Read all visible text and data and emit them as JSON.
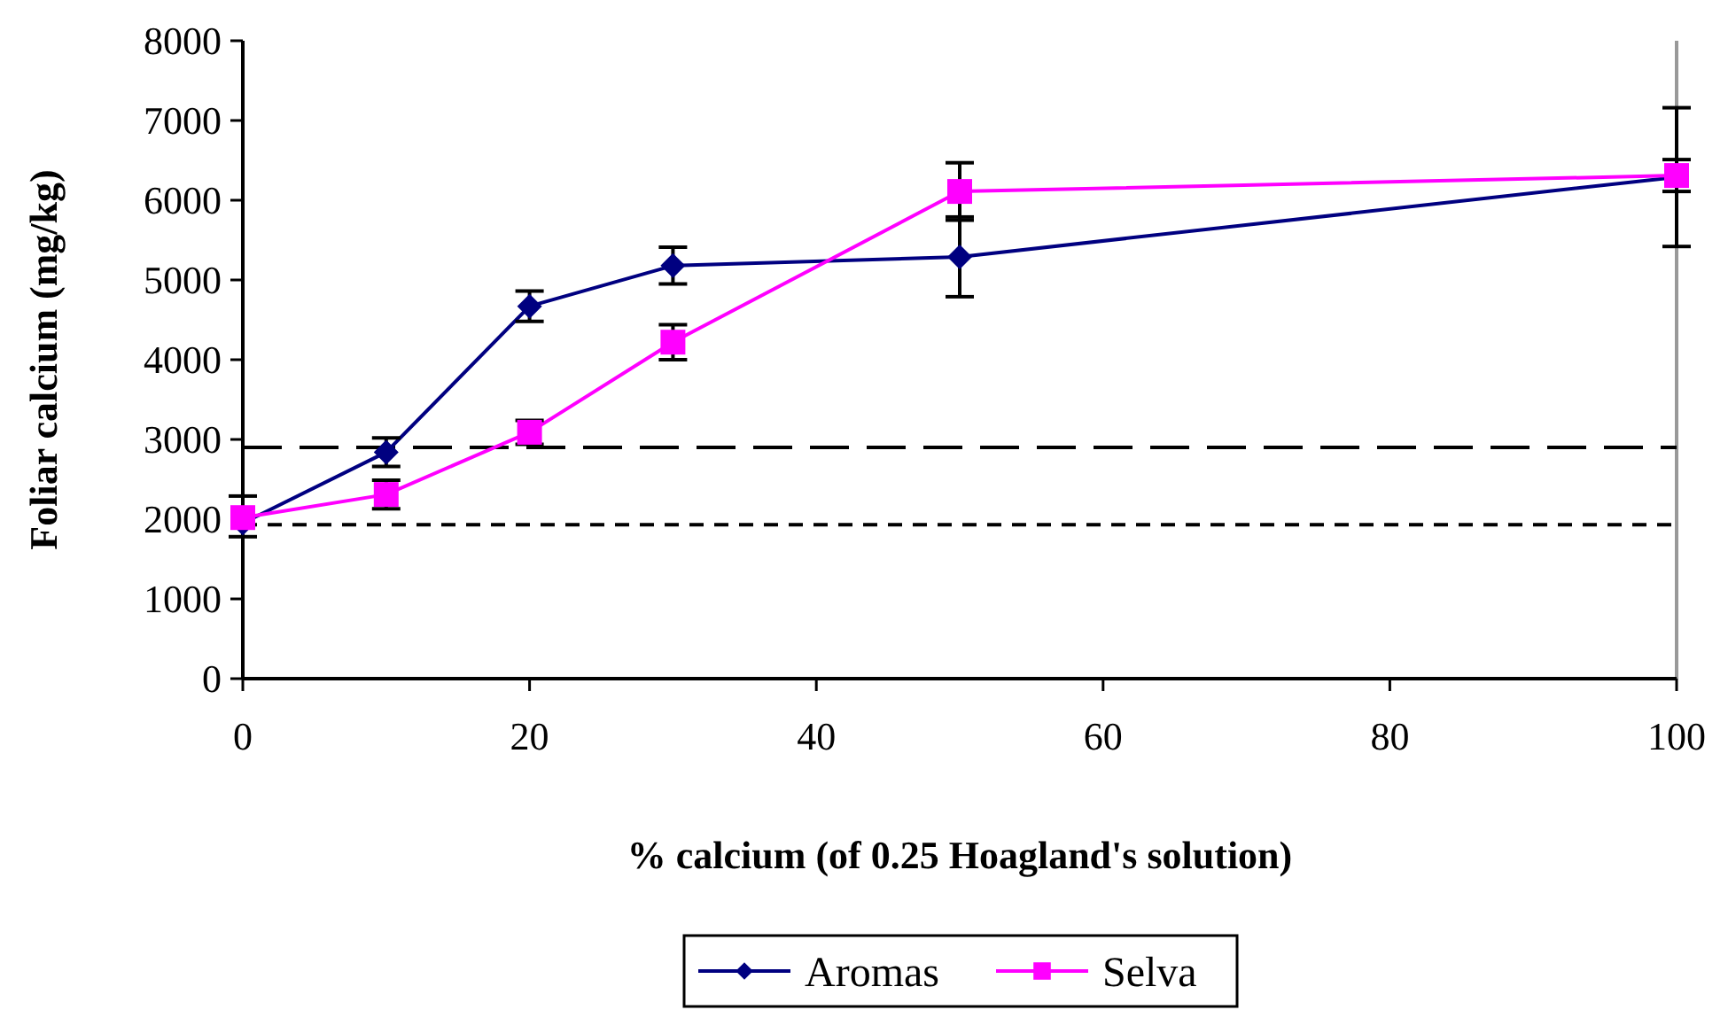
{
  "chart_data": {
    "type": "line",
    "xlabel": "% calcium (of 0.25 Hoagland's solution)",
    "ylabel": "Foliar calcium (mg/kg)",
    "x": [
      0,
      10,
      20,
      30,
      50,
      100
    ],
    "xlim": [
      0,
      100
    ],
    "xticks": [
      0,
      20,
      40,
      60,
      80,
      100
    ],
    "ylim": [
      0,
      8000
    ],
    "yticks": [
      0,
      1000,
      2000,
      3000,
      4000,
      5000,
      6000,
      7000,
      8000
    ],
    "grid": false,
    "legend": "bottom",
    "series": [
      {
        "name": "Aromas",
        "color": "#000080",
        "marker": "diamond",
        "values": [
          1950,
          2840,
          4670,
          5180,
          5290,
          6290
        ],
        "errors": [
          [
            1780,
            2290
          ],
          180,
          190,
          230,
          500,
          870
        ]
      },
      {
        "name": "Selva",
        "color": "#ff00ff",
        "marker": "square",
        "values": [
          2020,
          2310,
          3090,
          4220,
          6110,
          6310
        ],
        "errors": [
          null,
          180,
          150,
          220,
          360,
          200
        ]
      }
    ],
    "ref_lines": [
      {
        "axis": "y",
        "value": 2900,
        "color": "#000000",
        "line_style": "dashed"
      },
      {
        "axis": "y",
        "value": 1930,
        "color": "#000000",
        "line_style": "dotted"
      }
    ]
  }
}
